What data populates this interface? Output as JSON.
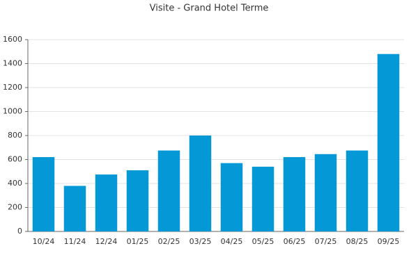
{
  "chart_data": {
    "type": "bar",
    "title": "Visite - Grand Hotel Terme",
    "categories": [
      "10/24",
      "11/24",
      "12/24",
      "01/25",
      "02/25",
      "03/25",
      "04/25",
      "05/25",
      "06/25",
      "07/25",
      "08/25",
      "09/25"
    ],
    "values": [
      620,
      380,
      475,
      510,
      675,
      800,
      570,
      540,
      620,
      645,
      675,
      1480
    ],
    "color": "#0499d6",
    "ylim": [
      0,
      1600
    ],
    "yticks": [
      0,
      200,
      400,
      600,
      800,
      1000,
      1200,
      1400,
      1600
    ],
    "grid": true
  }
}
